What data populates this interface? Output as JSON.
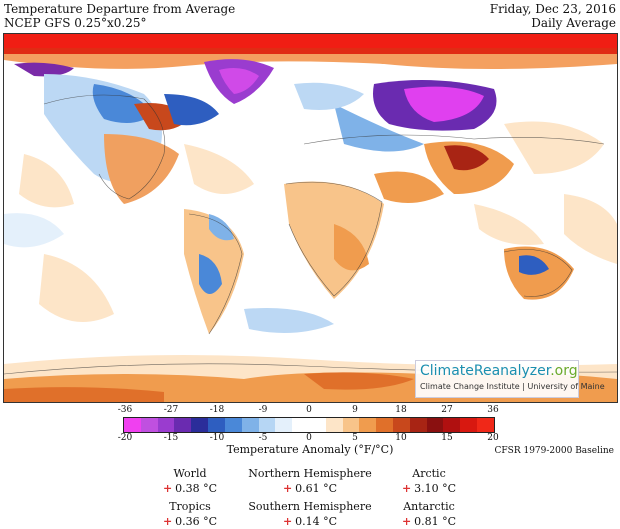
{
  "header": {
    "title": "Temperature Departure from Average",
    "model": "NCEP GFS 0.25°x0.25°",
    "date": "Friday, Dec 23, 2016",
    "mode": "Daily Average"
  },
  "logo": {
    "brand": "ClimateReanalyzer",
    "tld": ".org",
    "subtitle": "Climate Change Institute | University of Maine"
  },
  "colorbar": {
    "fahrenheit_ticks": [
      "-36",
      "-27",
      "-18",
      "-9",
      "0",
      "9",
      "18",
      "27",
      "36"
    ],
    "celsius_ticks": [
      "-20",
      "-15",
      "-10",
      "-5",
      "0",
      "5",
      "10",
      "15",
      "20"
    ],
    "title": "Temperature Anomaly (°F/°C)",
    "baseline": "CFSR 1979-2000 Baseline",
    "colors": [
      "#f040f0",
      "#c050e0",
      "#9a3ccf",
      "#6a2bb0",
      "#2b2d9a",
      "#2e5ec0",
      "#4a88d8",
      "#7fb2e8",
      "#b6d6f4",
      "#e4f0fb",
      "#ffffff",
      "#ffffff",
      "#fde5c8",
      "#f8c48a",
      "#f09c4e",
      "#e0702a",
      "#c8481c",
      "#a82414",
      "#8a1010",
      "#b01010",
      "#d81810",
      "#f02818"
    ]
  },
  "stats": [
    {
      "label": "World",
      "sign": "+",
      "value": "0.38 °C"
    },
    {
      "label": "Northern Hemisphere",
      "sign": "+",
      "value": "0.61 °C"
    },
    {
      "label": "Arctic",
      "sign": "+",
      "value": "3.10 °C"
    },
    {
      "label": "Tropics",
      "sign": "+",
      "value": "0.36 °C"
    },
    {
      "label": "Southern Hemisphere",
      "sign": "+",
      "value": "0.14 °C"
    },
    {
      "label": "Antarctic",
      "sign": "+",
      "value": "0.81 °C"
    }
  ]
}
